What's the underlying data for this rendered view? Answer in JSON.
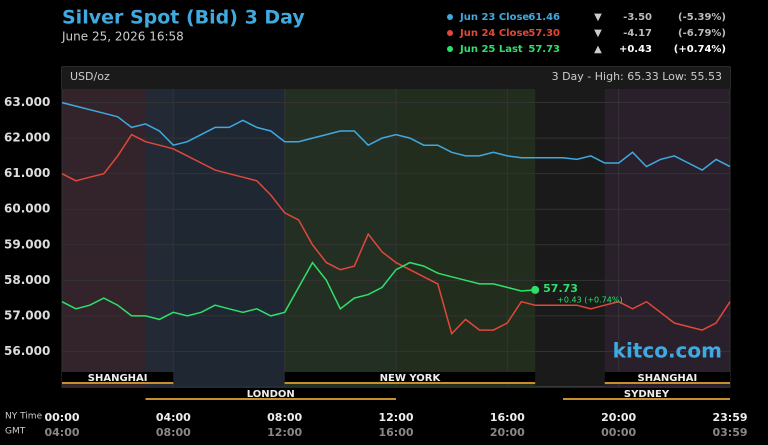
{
  "chart_data": {
    "type": "line",
    "title": "Silver Spot (Bid) 3 Day",
    "subtitle": "June 25, 2026 16:58",
    "y_unit": "USD/oz",
    "range_text": "3 Day - High: 65.33  Low: 55.53",
    "watermark": "kitco.com",
    "x_row_labels": [
      "NY Time",
      "GMT"
    ],
    "x": [
      0,
      0.5,
      1,
      1.5,
      2,
      2.5,
      3,
      3.5,
      4,
      4.5,
      5,
      5.5,
      6,
      6.5,
      7,
      7.5,
      8,
      8.5,
      9,
      9.5,
      10,
      10.5,
      11,
      11.5,
      12,
      12.5,
      13,
      13.5,
      14,
      14.5,
      15,
      15.5,
      16,
      16.5,
      17,
      17.5,
      18,
      18.5,
      19,
      19.5,
      20,
      20.5,
      21,
      21.5,
      22,
      22.5,
      23,
      23.5,
      24
    ],
    "xlim": [
      0,
      24
    ],
    "xticks": [
      {
        "value": 0,
        "label": "00:00"
      },
      {
        "value": 4,
        "label": "04:00"
      },
      {
        "value": 8,
        "label": "08:00"
      },
      {
        "value": 12,
        "label": "12:00"
      },
      {
        "value": 16,
        "label": "16:00"
      },
      {
        "value": 20,
        "label": "20:00"
      },
      {
        "value": 24,
        "label": "23:59"
      }
    ],
    "gmt_ticks": [
      "04:00",
      "08:00",
      "12:00",
      "16:00",
      "20:00",
      "00:00",
      "03:59"
    ],
    "ylim": [
      55,
      64
    ],
    "yticks": [
      {
        "value": 56,
        "label": "56.000"
      },
      {
        "value": 57,
        "label": "57.000"
      },
      {
        "value": 58,
        "label": "58.000"
      },
      {
        "value": 59,
        "label": "59.000"
      },
      {
        "value": 60,
        "label": "60.000"
      },
      {
        "value": 61,
        "label": "61.000"
      },
      {
        "value": 62,
        "label": "62.000"
      },
      {
        "value": 63,
        "label": "63.000"
      }
    ],
    "grid": true,
    "series": [
      {
        "name": "Jun 23 Close",
        "color": "#3fa9e0",
        "last": "61.46",
        "arrow": "▼",
        "change": "-3.50",
        "change_pct": "(-5.39%)",
        "values": [
          63.0,
          62.9,
          62.8,
          62.7,
          62.6,
          62.3,
          62.4,
          62.2,
          61.8,
          61.9,
          62.1,
          62.3,
          62.3,
          62.5,
          62.3,
          62.2,
          61.9,
          61.9,
          62.0,
          62.1,
          62.2,
          62.2,
          61.8,
          62.0,
          62.1,
          62.0,
          61.8,
          61.8,
          61.6,
          61.5,
          61.5,
          61.6,
          61.5,
          61.45,
          61.45,
          61.45,
          61.45,
          61.4,
          61.5,
          61.3,
          61.3,
          61.6,
          61.2,
          61.4,
          61.5,
          61.3,
          61.1,
          61.4,
          61.2
        ]
      },
      {
        "name": "Jun 24 Close",
        "color": "#e0483a",
        "last": "57.30",
        "arrow": "▼",
        "change": "-4.17",
        "change_pct": "(-6.79%)",
        "values": [
          61.0,
          60.8,
          60.9,
          61.0,
          61.5,
          62.1,
          61.9,
          61.8,
          61.7,
          61.5,
          61.3,
          61.1,
          61.0,
          60.9,
          60.8,
          60.4,
          59.9,
          59.7,
          59.0,
          58.5,
          58.3,
          58.4,
          59.3,
          58.8,
          58.5,
          58.3,
          58.1,
          57.9,
          56.5,
          56.9,
          56.6,
          56.6,
          56.8,
          57.4,
          57.3,
          57.3,
          57.3,
          57.3,
          57.2,
          57.3,
          57.4,
          57.2,
          57.4,
          57.1,
          56.8,
          56.7,
          56.6,
          56.8,
          57.4
        ]
      },
      {
        "name": "Jun 25 Last",
        "color": "#2ee06a",
        "last": "57.73",
        "arrow": "▲",
        "change": "+0.43",
        "change_pct": "(+0.74%)",
        "values": [
          57.4,
          57.2,
          57.3,
          57.5,
          57.3,
          57.0,
          57.0,
          56.9,
          57.1,
          57.0,
          57.1,
          57.3,
          57.2,
          57.1,
          57.2,
          57.0,
          57.1,
          57.8,
          58.5,
          58.0,
          57.2,
          57.5,
          57.6,
          57.8,
          58.3,
          58.5,
          58.4,
          58.2,
          58.1,
          58.0,
          57.9,
          57.9,
          57.8,
          57.7,
          57.73,
          null,
          null,
          null,
          null,
          null,
          null,
          null,
          null,
          null,
          null,
          null,
          null,
          null,
          null
        ]
      }
    ],
    "last_point": {
      "index": 34,
      "label": "57.73",
      "change_label": "+0.43 (+0.74%)"
    },
    "sessions": [
      {
        "name": "SHANGHAI",
        "start": 0,
        "end": 4,
        "row": 1,
        "color": "#3a2530"
      },
      {
        "name": "LONDON",
        "start": 3,
        "end": 12,
        "row": 2,
        "color": "#202a3a"
      },
      {
        "name": "NEW YORK",
        "start": 8,
        "end": 17,
        "row": 1,
        "color": "#26321f"
      },
      {
        "name": "SHANGHAI",
        "start": 19.5,
        "end": 24,
        "row": 1,
        "color": "#2e2230"
      },
      {
        "name": "SYDNEY",
        "start": 18,
        "end": 24,
        "row": 2,
        "color": "#2e2230"
      }
    ]
  }
}
